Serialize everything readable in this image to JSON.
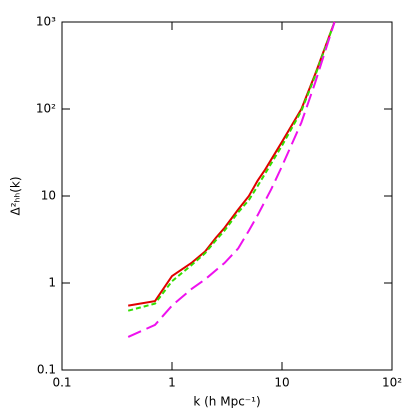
{
  "chart_data": {
    "type": "line",
    "xlabel": "k (h Mpc⁻¹)",
    "ylabel": "Δ²ₕₕ(k)",
    "xscale": "log",
    "yscale": "log",
    "xlim": [
      0.1,
      100
    ],
    "ylim": [
      0.1,
      1000
    ],
    "xticks": [
      0.1,
      1,
      10,
      {
        "value": 100,
        "label": "10²"
      }
    ],
    "yticks": [
      0.1,
      1,
      10,
      {
        "value": 100,
        "label": "10²"
      },
      {
        "value": 1000,
        "label": "10³"
      }
    ],
    "series": [
      {
        "color": "#e00000",
        "dash": "solid",
        "x": [
          0.4,
          0.7,
          1.0,
          1.5,
          2.0,
          2.5,
          3.0,
          4.0,
          5.0,
          6.0,
          7.0,
          10,
          15,
          20,
          30
        ],
        "values": [
          0.55,
          0.62,
          1.2,
          1.7,
          2.3,
          3.3,
          4.3,
          7,
          10,
          15,
          20,
          42,
          100,
          250,
          1000
        ]
      },
      {
        "color": "#33dd00",
        "dash": "short",
        "x": [
          0.4,
          0.7,
          1.0,
          1.5,
          2.0,
          2.5,
          3.0,
          4.0,
          5.0,
          6.0,
          7.0,
          10,
          15,
          20,
          30
        ],
        "values": [
          0.48,
          0.58,
          1.05,
          1.6,
          2.2,
          3.1,
          4,
          6.5,
          9,
          13,
          18,
          38,
          95,
          240,
          1000
        ]
      },
      {
        "color": "#ee11ee",
        "dash": "long",
        "x": [
          0.4,
          0.7,
          1.0,
          1.5,
          2.0,
          3.0,
          4.0,
          5.0,
          6.0,
          8.0,
          10,
          15,
          20,
          30
        ],
        "values": [
          0.24,
          0.33,
          0.55,
          0.85,
          1.1,
          1.7,
          2.5,
          4,
          6,
          12,
          22,
          70,
          200,
          1000
        ]
      }
    ]
  }
}
